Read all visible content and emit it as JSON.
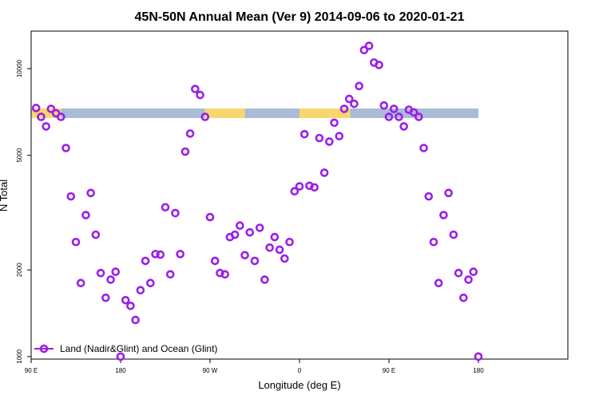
{
  "chart_data": {
    "type": "scatter",
    "title": "45N-50N Annual Mean (Ver 9)   2014-09-06 to 2020-01-21",
    "xlabel": "Longitude (deg E)",
    "ylabel": "N Total",
    "y_scale": "log",
    "xlim": [
      -90,
      180
    ],
    "ylim": [
      980,
      13500
    ],
    "x_ticks": [
      {
        "value": -90,
        "label": "90 E"
      },
      {
        "value": -45,
        "label": "180"
      },
      {
        "value": 0,
        "label": "90 W"
      },
      {
        "value": 45,
        "label": "0"
      },
      {
        "value": 90,
        "label": "90 E"
      },
      {
        "value": 135,
        "label": "180"
      }
    ],
    "y_ticks": [
      {
        "value": 1000,
        "label": "1000"
      },
      {
        "value": 2000,
        "label": "2000"
      },
      {
        "value": 5000,
        "label": "5000"
      },
      {
        "value": 10000,
        "label": "10000"
      }
    ],
    "legend": {
      "label": "Land (Nadir&Glint) and Ocean (Glint)",
      "position": "bottom-left"
    },
    "series": [
      {
        "name": "Land (Nadir&Glint) and Ocean (Glint)",
        "color": "#9b1fe8",
        "x": [
          -87.5,
          -85,
          -82.5,
          -80,
          -77.5,
          -75,
          -72.5,
          -70,
          -67.5,
          -65,
          -62.5,
          -60,
          -57.5,
          -55,
          -52.5,
          -50,
          -47.5,
          -45,
          -42.5,
          -40,
          -37.5,
          -35,
          -32.5,
          -30,
          -27.5,
          -25,
          -22.5,
          -20,
          -17.5,
          -15,
          -12.5,
          -10,
          -7.5,
          -5,
          -2.5,
          0,
          2.5,
          5,
          7.5,
          10,
          12.5,
          15,
          17.5,
          20,
          22.5,
          25,
          27.5,
          30,
          32.5,
          35,
          37.5,
          40,
          42.5,
          45,
          47.5,
          50,
          52.5,
          55,
          57.5,
          60,
          62.5,
          65,
          67.5,
          70,
          72.5,
          75,
          77.5,
          80,
          82.5,
          85,
          87.5,
          90,
          92.5,
          95,
          97.5,
          100,
          102.5,
          105,
          107.5,
          110,
          112.5,
          115,
          117.5,
          120,
          122.5,
          125,
          127.5,
          130,
          132.5,
          135
        ],
        "y": [
          7300,
          6800,
          6300,
          7250,
          7000,
          6800,
          5300,
          3600,
          2500,
          1800,
          3100,
          3700,
          2650,
          1950,
          1600,
          1850,
          1970,
          1000,
          1570,
          1500,
          1340,
          1700,
          2150,
          1800,
          2270,
          2260,
          3300,
          1930,
          3150,
          2270,
          5150,
          5950,
          8500,
          8100,
          6800,
          3050,
          2150,
          1950,
          1930,
          2600,
          2650,
          2850,
          2250,
          2700,
          2150,
          2800,
          1850,
          2390,
          2600,
          2350,
          2190,
          2500,
          3750,
          3900,
          5920,
          3920,
          3870,
          5740,
          4350,
          5580,
          6490,
          5830,
          7250,
          7850,
          7550,
          8700,
          11600,
          12000,
          10500,
          10300,
          7450,
          6800,
          7250,
          6800,
          6300,
          7200,
          7050,
          6800,
          5300,
          3600,
          2500,
          1800,
          3100,
          3700,
          2650,
          1950,
          1600,
          1850,
          1970,
          1000
        ]
      }
    ],
    "coverage_strip": {
      "value": 7000,
      "ocean_color": "#a8bcd8",
      "land_color": "#f7d66e",
      "ocean_ranges": [
        [
          -75,
          -2.5
        ],
        [
          17.5,
          45
        ],
        [
          70.5,
          135
        ]
      ],
      "land_ranges": [
        [
          -90,
          -75
        ],
        [
          -2.5,
          17.5
        ],
        [
          45,
          70.5
        ]
      ]
    }
  }
}
